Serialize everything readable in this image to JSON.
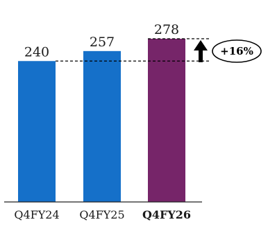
{
  "chart_data": {
    "type": "bar",
    "categories": [
      "Q4FY24",
      "Q4FY25",
      "Q4FY26"
    ],
    "values": [
      240,
      257,
      278
    ],
    "highlight_category": "Q4FY26",
    "colors": {
      "default": "#1570c9",
      "highlight": "#762569",
      "axis": "#222222"
    },
    "annotation": {
      "label": "+16%",
      "from_category": "Q4FY24",
      "to_category": "Q4FY26"
    },
    "grid": false,
    "title": "",
    "xlabel": "",
    "ylabel": "",
    "ylim": [
      0,
      278
    ]
  }
}
